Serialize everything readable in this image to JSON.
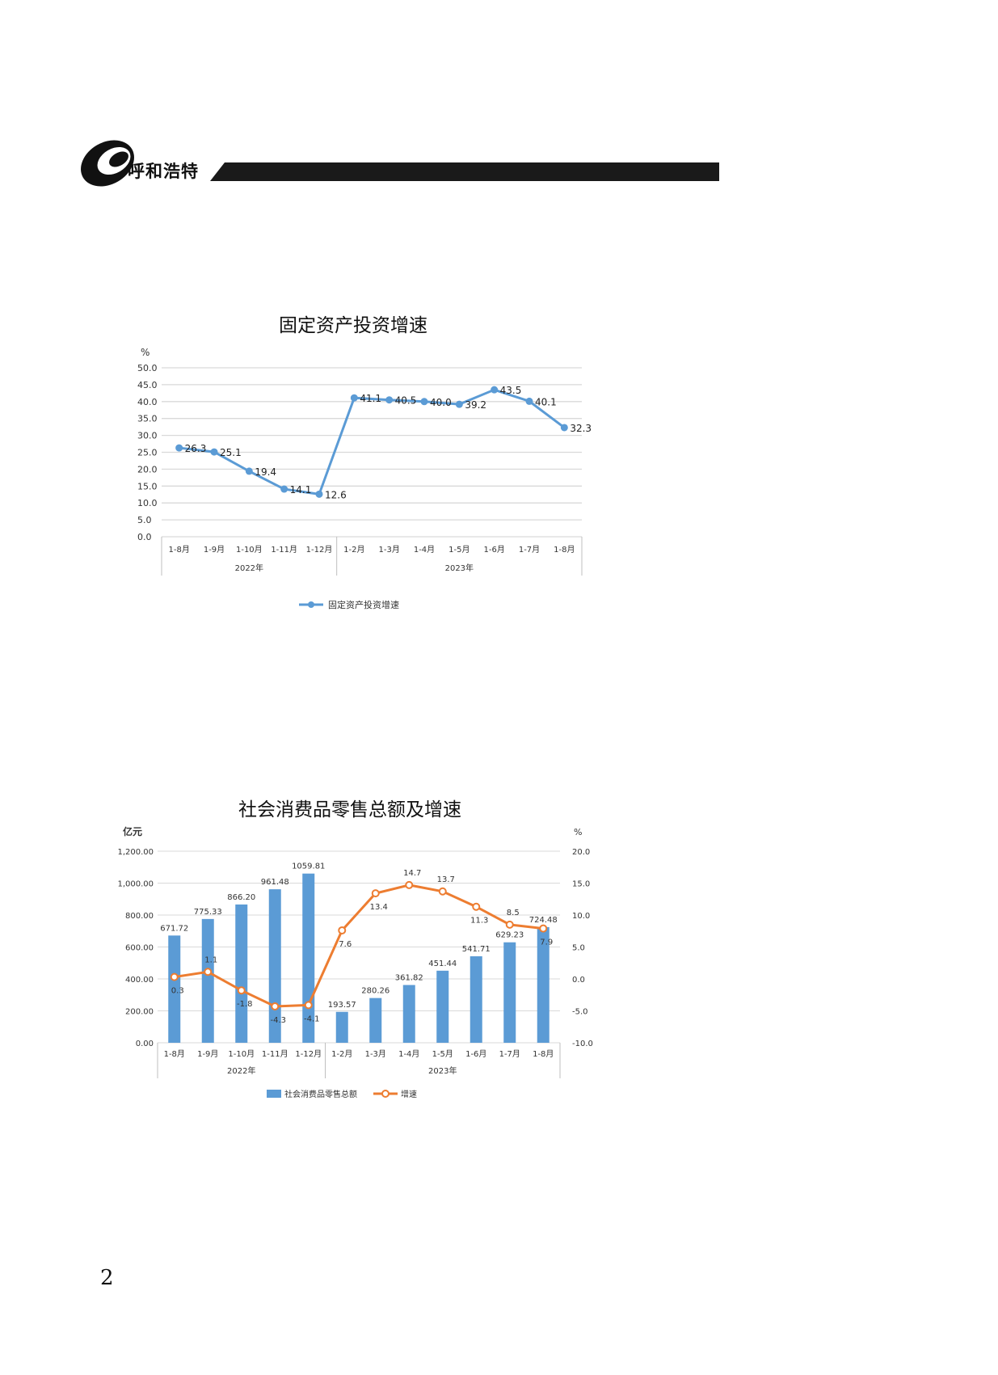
{
  "header": {
    "brand": "呼和浩特"
  },
  "page_number": "2",
  "colors": {
    "fixed_line": "#5b9bd5",
    "bar": "#5b9bd5",
    "growth_line": "#ed7d31",
    "grid": "#d9d9d9",
    "header_bar": "#1a1a1a"
  },
  "chart_data": [
    {
      "type": "line",
      "title": "固定资产投资增速",
      "ylabel": "%",
      "ylim": [
        0,
        50
      ],
      "yticks": [
        "0.0",
        "5.0",
        "10.0",
        "15.0",
        "20.0",
        "25.0",
        "30.0",
        "35.0",
        "40.0",
        "45.0",
        "50.0"
      ],
      "categories": [
        "1-8月",
        "1-9月",
        "1-10月",
        "1-11月",
        "1-12月",
        "1-2月",
        "1-3月",
        "1-4月",
        "1-5月",
        "1-6月",
        "1-7月",
        "1-8月"
      ],
      "groups": [
        {
          "label": "2022年",
          "count": 5
        },
        {
          "label": "2023年",
          "count": 7
        }
      ],
      "series": [
        {
          "name": "固定资产投资增速",
          "values": [
            26.3,
            25.1,
            19.4,
            14.1,
            12.6,
            41.1,
            40.5,
            40.0,
            39.2,
            43.5,
            40.1,
            32.3
          ]
        }
      ],
      "data_labels": [
        "26.3",
        "25.1",
        "19.4",
        "14.1",
        "12.6",
        "41.1",
        "40.5",
        "40.0",
        "39.2",
        "43.5",
        "40.1",
        "32.3"
      ],
      "grid": true,
      "legend": "bottom"
    },
    {
      "type": "bar",
      "title": "社会消费品零售总额及增速",
      "ylabel_left": "亿元",
      "ylabel_right": "%",
      "ylim_left": [
        0,
        1200
      ],
      "ylim_right": [
        -10,
        20
      ],
      "yticks_left": [
        "0.00",
        "200.00",
        "400.00",
        "600.00",
        "800.00",
        "1,000.00",
        "1,200.00"
      ],
      "yticks_right": [
        "-10.0",
        "-5.0",
        "0.0",
        "5.0",
        "10.0",
        "15.0",
        "20.0"
      ],
      "categories": [
        "1-8月",
        "1-9月",
        "1-10月",
        "1-11月",
        "1-12月",
        "1-2月",
        "1-3月",
        "1-4月",
        "1-5月",
        "1-6月",
        "1-7月",
        "1-8月"
      ],
      "groups": [
        {
          "label": "2022年",
          "count": 5
        },
        {
          "label": "2023年",
          "count": 7
        }
      ],
      "series": [
        {
          "name": "社会消费品零售总额",
          "kind": "bar",
          "axis": "left",
          "values": [
            671.72,
            775.33,
            866.2,
            961.48,
            1059.81,
            193.57,
            280.26,
            361.82,
            451.44,
            541.71,
            629.23,
            724.48
          ],
          "labels": [
            "671.72",
            "775.33",
            "866.20",
            "961.48",
            "1059.81",
            "193.57",
            "280.26",
            "361.82",
            "451.44",
            "541.71",
            "629.23",
            "724.48"
          ]
        },
        {
          "name": "增速",
          "kind": "line",
          "axis": "right",
          "values": [
            0.3,
            1.1,
            -1.8,
            -4.3,
            -4.1,
            7.6,
            13.4,
            14.7,
            13.7,
            11.3,
            8.5,
            7.9
          ],
          "labels": [
            "0.3",
            "1.1",
            "-1.8",
            "-4.3",
            "-4.1",
            "7.6",
            "13.4",
            "14.7",
            "13.7",
            "11.3",
            "8.5",
            "7.9"
          ]
        }
      ],
      "grid": true,
      "legend": "bottom"
    }
  ]
}
